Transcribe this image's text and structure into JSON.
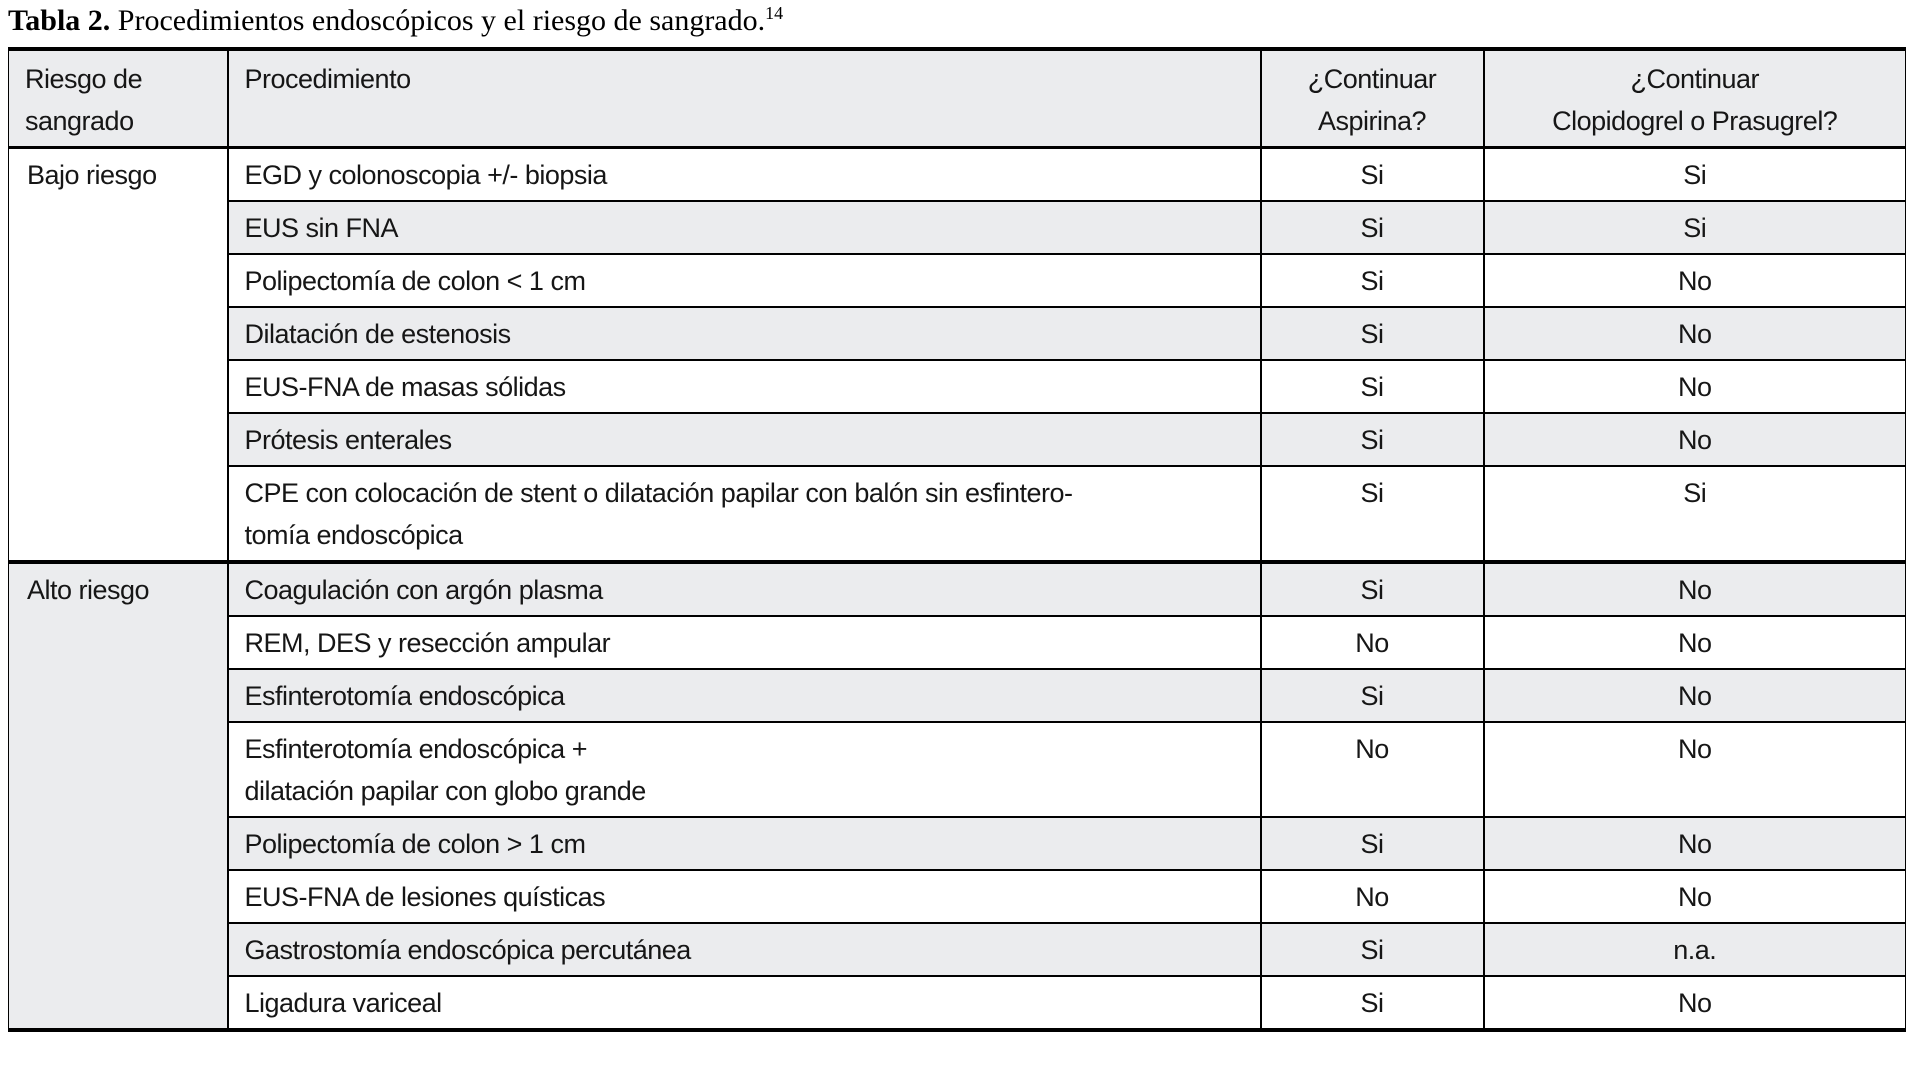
{
  "caption": {
    "label": "Tabla 2.",
    "text": " Procedimientos endoscópicos y el riesgo de sangrado.",
    "reference": "14"
  },
  "table": {
    "headers": [
      "Riesgo de\nsangrado",
      "Procedimiento",
      "¿Continuar\nAspirina?",
      "¿Continuar\nClopidogrel o Prasugrel?"
    ],
    "groups": [
      {
        "risk": "Bajo riesgo",
        "rows": [
          {
            "procedure": "EGD y colonoscopia +/- biopsia",
            "aspirin": "Si",
            "clopidogrel": "Si"
          },
          {
            "procedure": "EUS sin FNA",
            "aspirin": "Si",
            "clopidogrel": "Si"
          },
          {
            "procedure": "Polipectomía de colon < 1 cm",
            "aspirin": "Si",
            "clopidogrel": "No"
          },
          {
            "procedure": "Dilatación de estenosis",
            "aspirin": "Si",
            "clopidogrel": "No"
          },
          {
            "procedure": "EUS-FNA de masas sólidas",
            "aspirin": "Si",
            "clopidogrel": "No"
          },
          {
            "procedure": "Prótesis enterales",
            "aspirin": "Si",
            "clopidogrel": "No"
          },
          {
            "procedure": "CPE con colocación de stent o dilatación papilar con balón sin esfintero-\ntomía endoscópica",
            "aspirin": "Si",
            "clopidogrel": "Si"
          }
        ]
      },
      {
        "risk": "Alto riesgo",
        "rows": [
          {
            "procedure": "Coagulación con argón plasma",
            "aspirin": "Si",
            "clopidogrel": "No"
          },
          {
            "procedure": "REM, DES y resección ampular",
            "aspirin": "No",
            "clopidogrel": "No"
          },
          {
            "procedure": "Esfinterotomía endoscópica",
            "aspirin": "Si",
            "clopidogrel": "No"
          },
          {
            "procedure": "Esfinterotomía endoscópica +\ndilatación papilar con globo grande",
            "aspirin": "No",
            "clopidogrel": "No"
          },
          {
            "procedure": "Polipectomía de colon > 1 cm",
            "aspirin": "Si",
            "clopidogrel": "No"
          },
          {
            "procedure": "EUS-FNA de lesiones quísticas",
            "aspirin": "No",
            "clopidogrel": "No"
          },
          {
            "procedure": "Gastrostomía endoscópica percutánea",
            "aspirin": "Si",
            "clopidogrel": "n.a."
          },
          {
            "procedure": "Ligadura variceal",
            "aspirin": "Si",
            "clopidogrel": "No"
          }
        ]
      }
    ]
  },
  "colors": {
    "stripe": "#ebecee",
    "border": "#000000",
    "text": "#161616",
    "background": "#ffffff"
  }
}
